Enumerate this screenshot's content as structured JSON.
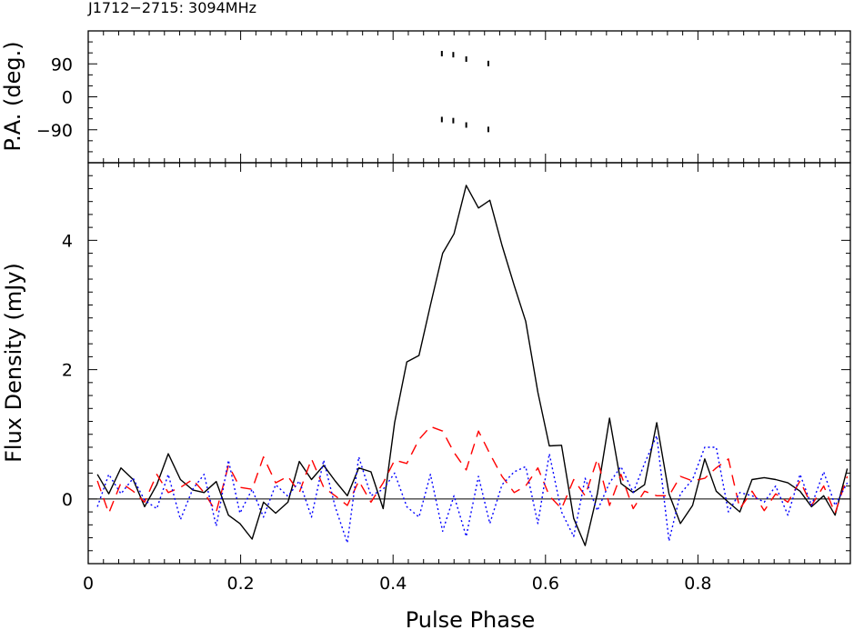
{
  "chart_data": [
    {
      "type": "scatter",
      "panel": "top",
      "title": "J1712−2715: 3094MHz",
      "ylabel": "P.A. (deg.)",
      "xlim": [
        0,
        1
      ],
      "ylim": [
        -180,
        180
      ],
      "yticks": [
        -90,
        0,
        90
      ],
      "ytick_labels": [
        "−90",
        "0",
        "90"
      ],
      "series": [
        {
          "points": [
            {
              "x": 0.464,
              "y": 118
            },
            {
              "x": 0.479,
              "y": 115
            },
            {
              "x": 0.496,
              "y": 103
            },
            {
              "x": 0.525,
              "y": 91
            },
            {
              "x": 0.464,
              "y": -62
            },
            {
              "x": 0.479,
              "y": -65
            },
            {
              "x": 0.496,
              "y": -77
            },
            {
              "x": 0.525,
              "y": -89
            }
          ]
        }
      ]
    },
    {
      "type": "line",
      "panel": "bottom",
      "xlabel": "Pulse Phase",
      "ylabel": "Flux Density (mJy)",
      "xlim": [
        0,
        1
      ],
      "ylim": [
        -1,
        5.2
      ],
      "xticks": [
        0,
        0.2,
        0.4,
        0.6,
        0.8
      ],
      "xtick_labels": [
        "0",
        "0.2",
        "0.4",
        "0.6",
        "0.8"
      ],
      "yticks": [
        0,
        2,
        4
      ],
      "ytick_labels": [
        "0",
        "2",
        "4"
      ],
      "baseline": 0,
      "x": [
        0.012,
        0.027,
        0.043,
        0.059,
        0.074,
        0.09,
        0.105,
        0.121,
        0.137,
        0.152,
        0.168,
        0.184,
        0.199,
        0.215,
        0.23,
        0.246,
        0.262,
        0.277,
        0.293,
        0.309,
        0.324,
        0.34,
        0.355,
        0.371,
        0.387,
        0.402,
        0.418,
        0.434,
        0.449,
        0.465,
        0.48,
        0.496,
        0.512,
        0.527,
        0.543,
        0.559,
        0.574,
        0.59,
        0.605,
        0.621,
        0.637,
        0.652,
        0.668,
        0.684,
        0.699,
        0.715,
        0.73,
        0.746,
        0.762,
        0.777,
        0.793,
        0.809,
        0.824,
        0.84,
        0.855,
        0.871,
        0.887,
        0.902,
        0.918,
        0.934,
        0.949,
        0.965,
        0.98,
        0.996
      ],
      "series": [
        {
          "color": "#000000",
          "dash": "solid",
          "values": [
            0.38,
            0.08,
            0.48,
            0.3,
            -0.12,
            0.22,
            0.7,
            0.3,
            0.14,
            0.1,
            0.27,
            -0.25,
            -0.38,
            -0.62,
            -0.05,
            -0.22,
            -0.05,
            0.58,
            0.3,
            0.52,
            0.28,
            0.05,
            0.48,
            0.42,
            -0.15,
            1.18,
            2.12,
            2.22,
            3.0,
            3.8,
            4.1,
            4.85,
            4.5,
            4.62,
            3.92,
            3.3,
            2.75,
            1.65,
            0.82,
            0.83,
            -0.3,
            -0.72,
            0.08,
            1.25,
            0.24,
            0.1,
            0.22,
            1.18,
            0.08,
            -0.38,
            -0.1,
            0.62,
            0.12,
            -0.05,
            -0.2,
            0.3,
            0.33,
            0.3,
            0.25,
            0.12,
            -0.12,
            0.05,
            -0.25,
            0.47
          ]
        },
        {
          "color": "#ff0000",
          "dash": "dashed",
          "values": [
            0.28,
            -0.22,
            0.25,
            0.12,
            -0.05,
            0.38,
            0.1,
            0.18,
            0.3,
            0.1,
            -0.2,
            0.52,
            0.18,
            0.15,
            0.65,
            0.25,
            0.35,
            0.1,
            0.62,
            0.18,
            0.05,
            -0.1,
            0.28,
            -0.05,
            0.25,
            0.6,
            0.55,
            0.92,
            1.12,
            1.05,
            0.72,
            0.45,
            1.05,
            0.7,
            0.35,
            0.1,
            0.2,
            0.48,
            0.05,
            -0.15,
            0.3,
            0.05,
            0.62,
            -0.1,
            0.38,
            -0.15,
            0.12,
            0.05,
            0.05,
            0.35,
            0.28,
            0.32,
            0.48,
            0.62,
            -0.15,
            0.12,
            -0.18,
            0.08,
            -0.05,
            0.28,
            -0.1,
            0.2,
            -0.22,
            0.35
          ]
        },
        {
          "color": "#0000ff",
          "dash": "dotted",
          "values": [
            -0.12,
            0.38,
            0.08,
            0.32,
            -0.02,
            -0.15,
            0.38,
            -0.32,
            0.15,
            0.38,
            -0.42,
            0.6,
            -0.22,
            0.15,
            -0.28,
            0.22,
            0.04,
            0.28,
            -0.28,
            0.6,
            -0.12,
            -0.68,
            0.65,
            0.05,
            0.15,
            0.4,
            -0.12,
            -0.28,
            0.38,
            -0.5,
            0.05,
            -0.58,
            0.35,
            -0.38,
            0.22,
            0.42,
            0.5,
            -0.38,
            0.7,
            -0.2,
            -0.58,
            0.32,
            -0.18,
            0.25,
            0.5,
            0.1,
            0.55,
            0.98,
            -0.65,
            0.08,
            0.3,
            0.8,
            0.8,
            -0.2,
            0.1,
            0.05,
            -0.05,
            0.2,
            -0.25,
            0.38,
            -0.1,
            0.42,
            -0.1,
            0.25
          ]
        }
      ]
    }
  ]
}
